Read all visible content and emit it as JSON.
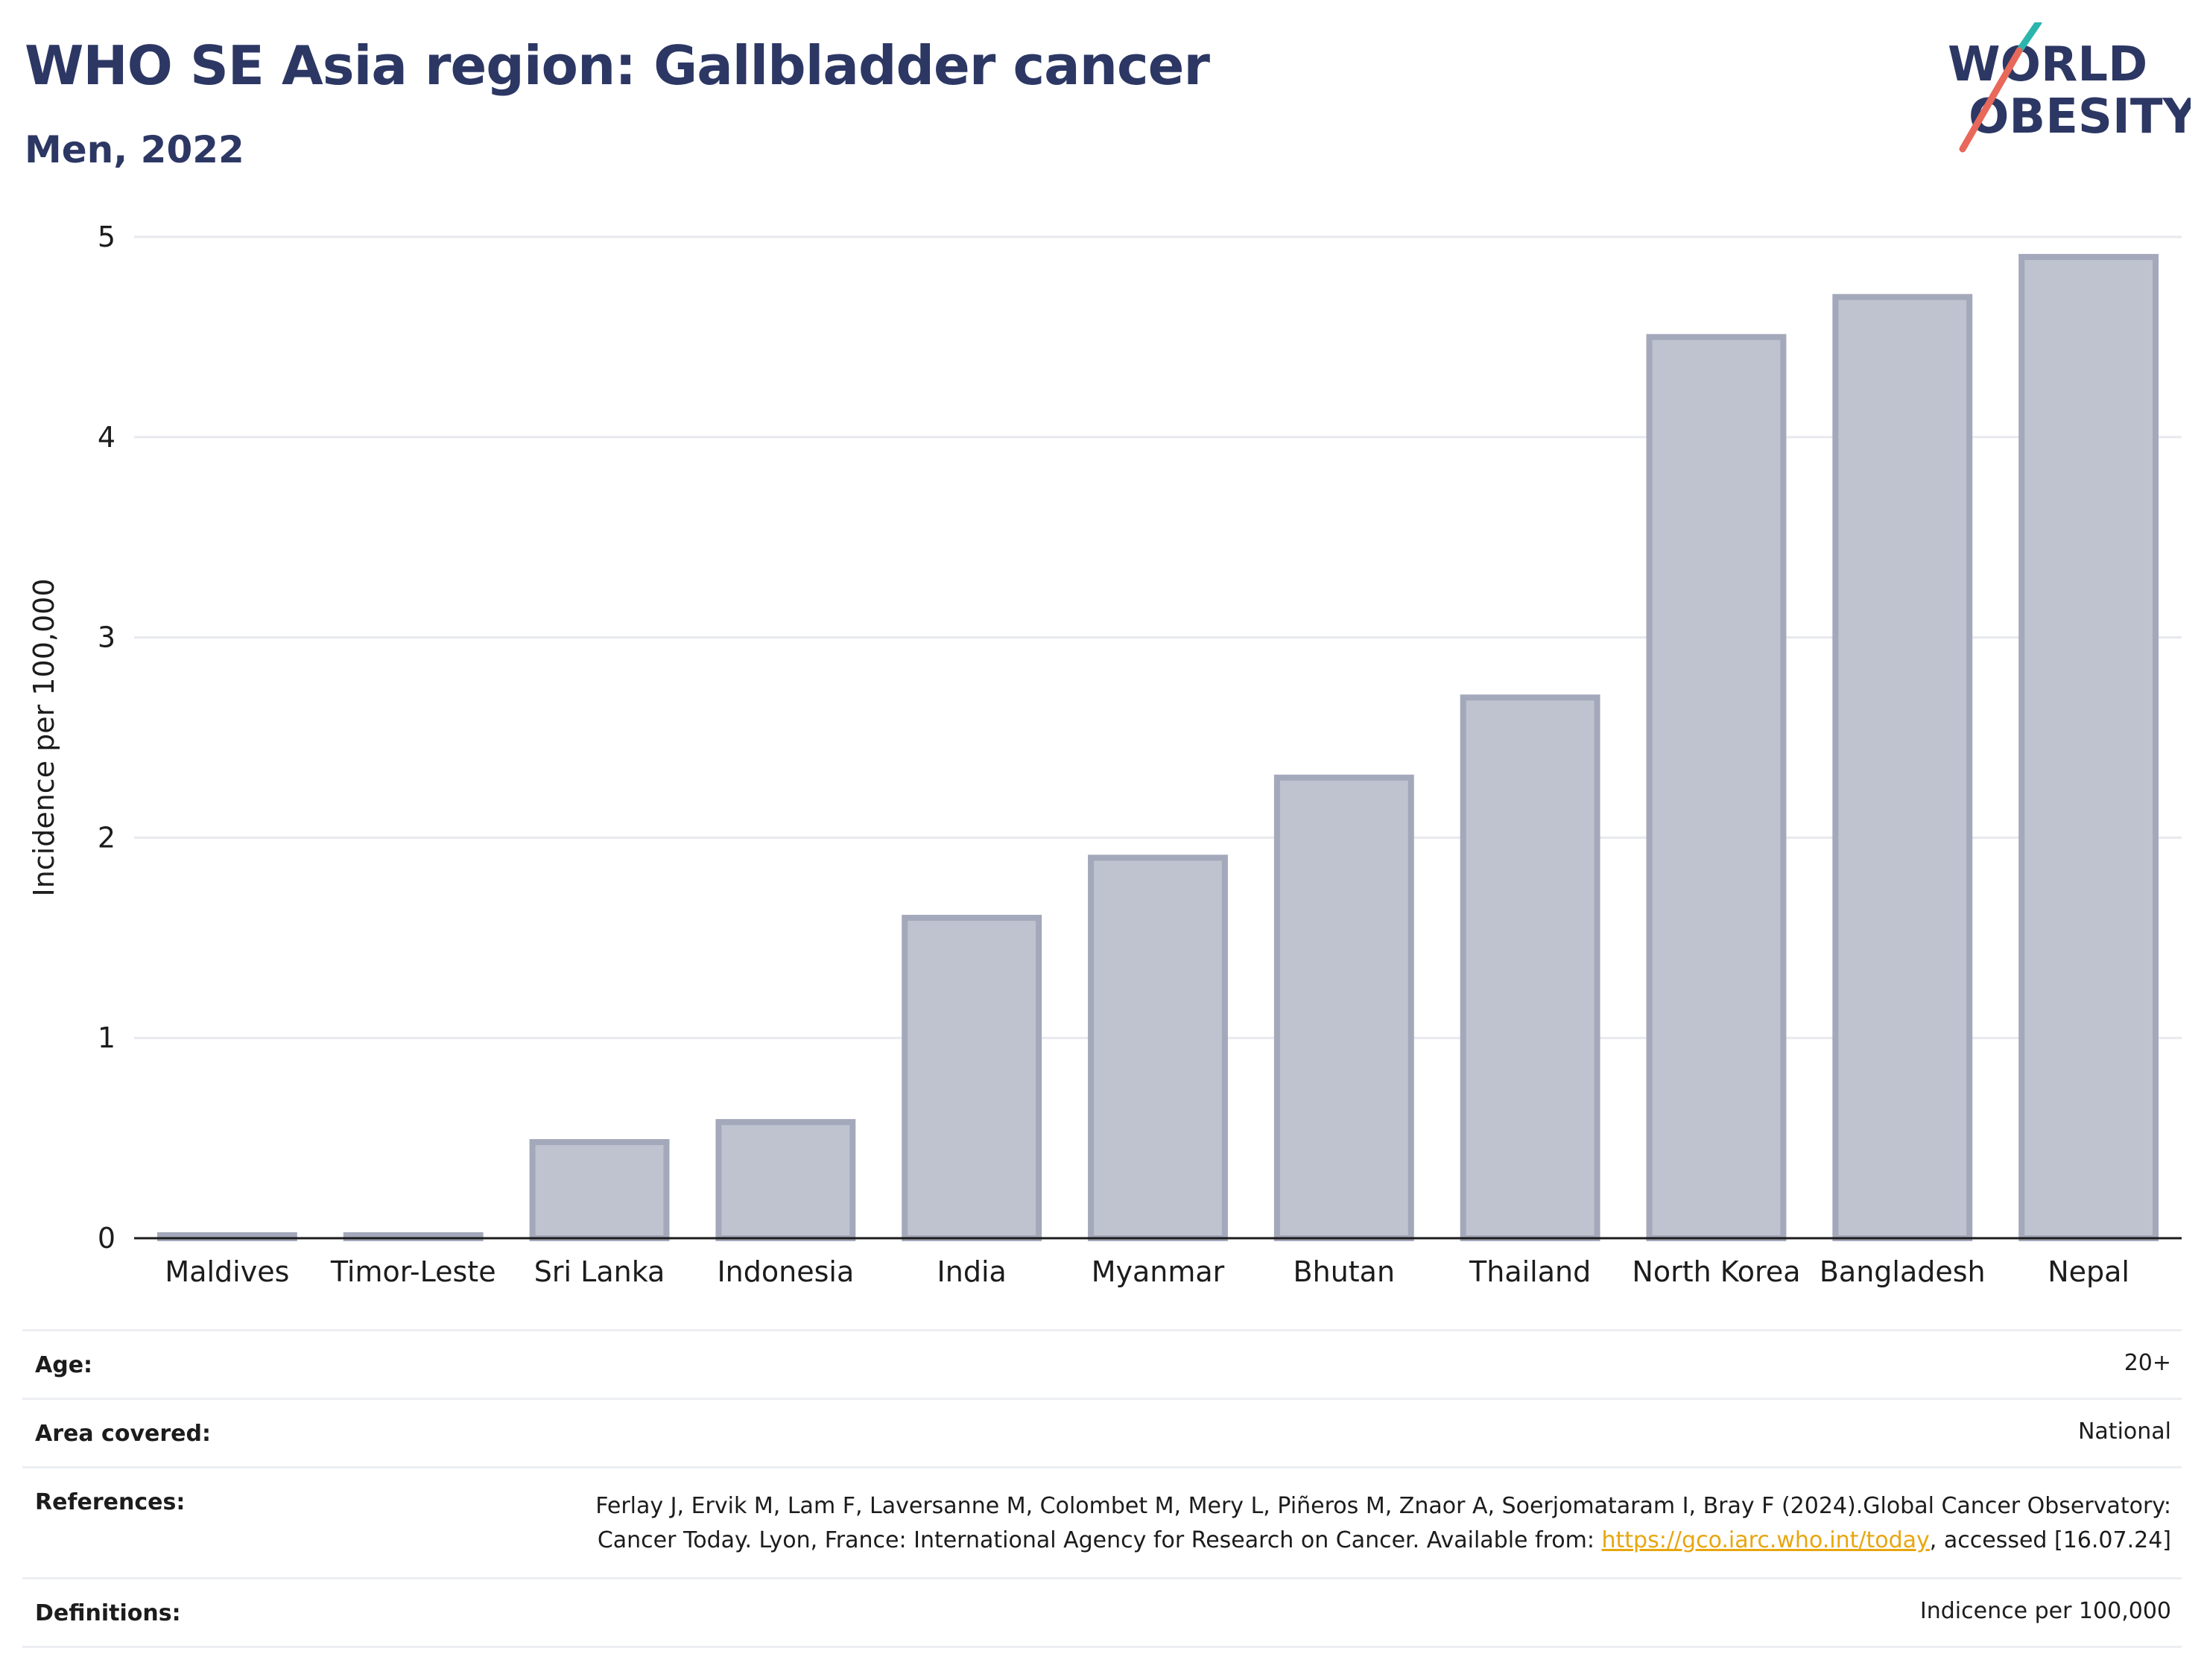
{
  "title": "WHO SE Asia region: Gallbladder cancer",
  "subtitle": "Men, 2022",
  "logo": {
    "line1": "WORLD",
    "line2": "OBESITY",
    "accent_teal": "#2bb5ac",
    "accent_coral": "#e8685a",
    "text_color": "#2c3764"
  },
  "colors": {
    "bar_fill": "#bfc2cf",
    "bar_stroke": "#a3a8ba",
    "grid": "#e8e9ef",
    "axis": "#1c1c1c",
    "title": "#2c3764",
    "link": "#e8a60e"
  },
  "chart_data": {
    "type": "bar",
    "title": "WHO SE Asia region: Gallbladder cancer",
    "subtitle": "Men, 2022",
    "xlabel": "",
    "ylabel": "Incidence per 100,000",
    "categories": [
      "Maldives",
      "Timor-Leste",
      "Sri Lanka",
      "Indonesia",
      "India",
      "Myanmar",
      "Bhutan",
      "Thailand",
      "North Korea",
      "Bangladesh",
      "Nepal"
    ],
    "values": [
      0.0,
      0.0,
      0.48,
      0.58,
      1.6,
      1.9,
      2.3,
      2.7,
      4.5,
      4.7,
      4.9
    ],
    "ylim": [
      0,
      5
    ],
    "yticks": [
      0,
      1,
      2,
      3,
      4,
      5
    ],
    "grid": true,
    "legend": "none"
  },
  "info": {
    "age_label": "Age:",
    "age_value": "20+",
    "area_label": "Area covered:",
    "area_value": "National",
    "references_label": "References:",
    "references_text_before": "Ferlay J, Ervik M, Lam F, Laversanne M, Colombet M, Mery L, Piñeros M, Znaor A, Soerjomataram I, Bray F (2024).Global Cancer Observatory: Cancer Today. Lyon, France: International Agency for Research on Cancer. Available from: ",
    "references_link": "https://gco.iarc.who.int/today",
    "references_text_after": ", accessed [16.07.24]",
    "definitions_label": "Definitions:",
    "definitions_value": "Indicence per 100,000"
  }
}
